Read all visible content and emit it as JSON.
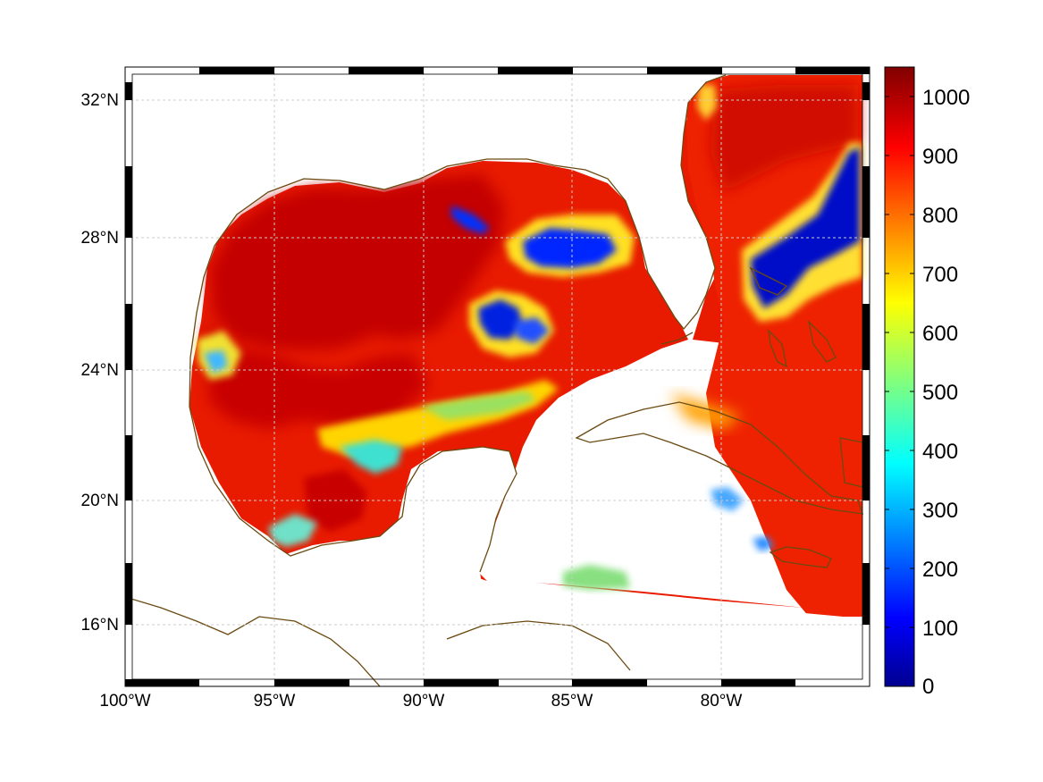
{
  "map": {
    "projection": "equidistant cylindrical",
    "lon_range": [
      -100,
      -75
    ],
    "lat_range": [
      14.3,
      33
    ],
    "grid": true,
    "coastline_color": "#6b4a12",
    "land_color": "#ffffff",
    "frame_style": "alternating black/white border"
  },
  "axes": {
    "x_ticks": [
      {
        "value": -100,
        "label": "100°W"
      },
      {
        "value": -95,
        "label": "95°W"
      },
      {
        "value": -90,
        "label": "90°W"
      },
      {
        "value": -85,
        "label": "85°W"
      },
      {
        "value": -80,
        "label": "80°W"
      }
    ],
    "y_ticks": [
      {
        "value": 16,
        "label": "16°N"
      },
      {
        "value": 20,
        "label": "20°N"
      },
      {
        "value": 24,
        "label": "24°N"
      },
      {
        "value": 28,
        "label": "28°N"
      },
      {
        "value": 32,
        "label": "32°N"
      }
    ]
  },
  "colorbar": {
    "colormap": "jet",
    "min": 0,
    "max": 1050,
    "ticks": [
      {
        "value": 0,
        "label": "0"
      },
      {
        "value": 100,
        "label": "100"
      },
      {
        "value": 200,
        "label": "200"
      },
      {
        "value": 300,
        "label": "300"
      },
      {
        "value": 400,
        "label": "400"
      },
      {
        "value": 500,
        "label": "500"
      },
      {
        "value": 600,
        "label": "600"
      },
      {
        "value": 700,
        "label": "700"
      },
      {
        "value": 800,
        "label": "800"
      },
      {
        "value": 900,
        "label": "900"
      },
      {
        "value": 1000,
        "label": "1000"
      }
    ]
  }
}
